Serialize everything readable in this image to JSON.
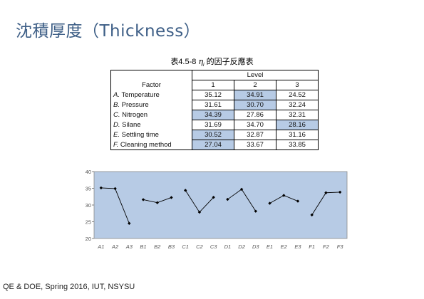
{
  "slide": {
    "title": "沈積厚度（Thickness）",
    "footer": "QE & DOE, Spring 2016, IUT, NSYSU"
  },
  "table": {
    "caption_prefix": "表4.5-8",
    "caption_symbol": "η",
    "caption_sub": "i",
    "caption_suffix": "的因子反應表",
    "level_header": "Level",
    "factor_header": "Factor",
    "level_labels": [
      "1",
      "2",
      "3"
    ],
    "rows": [
      {
        "factor_letter": "A.",
        "factor_name": "Temperature",
        "values": [
          "35.12",
          "34.91",
          "24.52"
        ],
        "highlight": 1
      },
      {
        "factor_letter": "B.",
        "factor_name": "Pressure",
        "values": [
          "31.61",
          "30.70",
          "32.24"
        ],
        "highlight": 1
      },
      {
        "factor_letter": "C.",
        "factor_name": "Nitrogen",
        "values": [
          "34.39",
          "27.86",
          "32.31"
        ],
        "highlight": 0
      },
      {
        "factor_letter": "D.",
        "factor_name": "Silane",
        "values": [
          "31.69",
          "34.70",
          "28.16"
        ],
        "highlight": 2
      },
      {
        "factor_letter": "E.",
        "factor_name": "Settling time",
        "values": [
          "30.52",
          "32.87",
          "31.16"
        ],
        "highlight": 0
      },
      {
        "factor_letter": "F.",
        "factor_name": "Cleaning method",
        "values": [
          "27.04",
          "33.67",
          "33.85"
        ],
        "highlight": 0
      }
    ],
    "highlight_color": "#b7cbe5"
  },
  "chart_data": {
    "type": "line",
    "ylim": [
      20,
      40
    ],
    "yticks": [
      "20",
      "25",
      "30",
      "35",
      "40"
    ],
    "grid": false,
    "plot_background": "#b7cbe5",
    "marker_color": "#000000",
    "groups": [
      {
        "labels": [
          "A1",
          "A2",
          "A3"
        ],
        "values": [
          35.12,
          34.91,
          24.52
        ]
      },
      {
        "labels": [
          "B1",
          "B2",
          "B3"
        ],
        "values": [
          31.61,
          30.7,
          32.24
        ]
      },
      {
        "labels": [
          "C1",
          "C2",
          "C3"
        ],
        "values": [
          34.39,
          27.86,
          32.31
        ]
      },
      {
        "labels": [
          "D1",
          "D2",
          "D3"
        ],
        "values": [
          31.69,
          34.7,
          28.16
        ]
      },
      {
        "labels": [
          "E1",
          "E2",
          "E3"
        ],
        "values": [
          30.52,
          32.87,
          31.16
        ]
      },
      {
        "labels": [
          "F1",
          "F2",
          "F3"
        ],
        "values": [
          27.04,
          33.67,
          33.85
        ]
      }
    ]
  }
}
